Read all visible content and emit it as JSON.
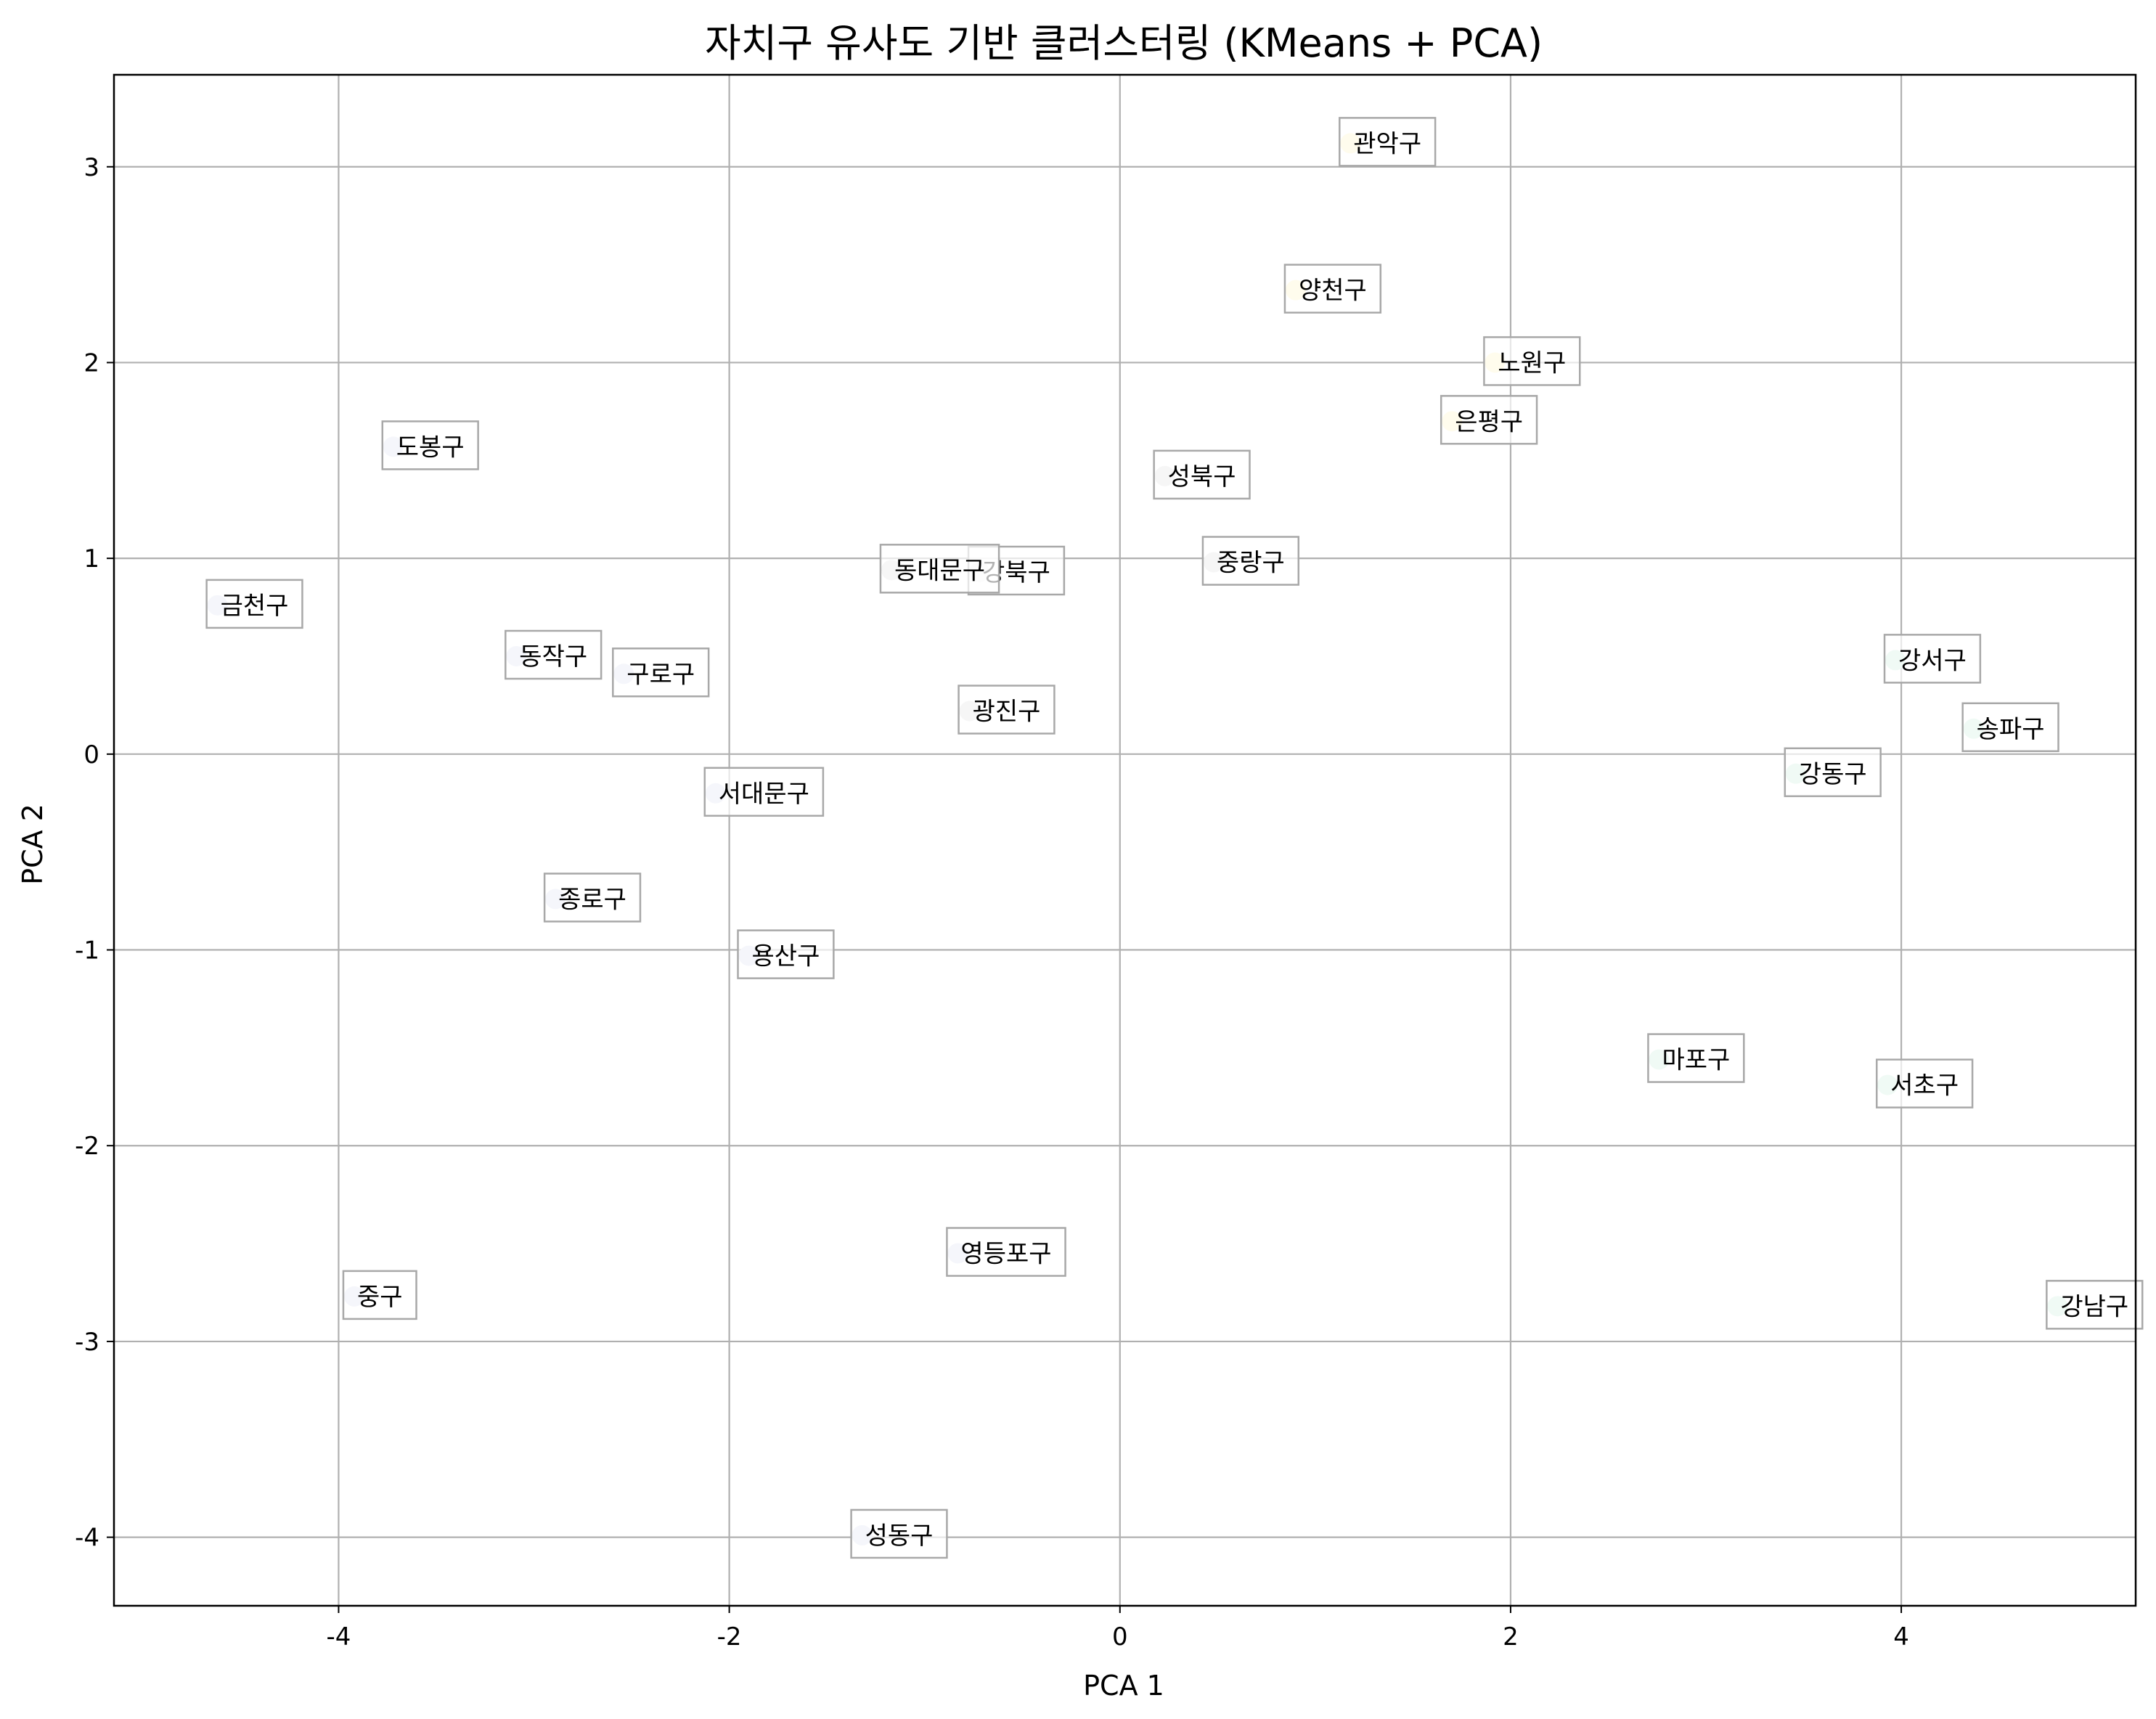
{
  "chart_data": {
    "type": "scatter",
    "title": "자치구 유사도 기반 클러스터링 (KMeans + PCA)",
    "xlabel": "PCA 1",
    "ylabel": "PCA 2",
    "xlim": [
      -5.15,
      5.2
    ],
    "ylim": [
      -4.35,
      3.47
    ],
    "xticks": [
      -4,
      -2,
      0,
      2,
      4
    ],
    "yticks": [
      -4,
      -3,
      -2,
      -1,
      0,
      1,
      2,
      3
    ],
    "xtick_labels": [
      "-4",
      "-2",
      "0",
      "2",
      "4"
    ],
    "ytick_labels": [
      "-4",
      "-3",
      "-2",
      "-1",
      "0",
      "1",
      "2",
      "3"
    ],
    "grid": true,
    "cluster_colors": {
      "a": "#dde2f0",
      "b": "#e0e0e0",
      "c": "#fff3c4",
      "d": "#cdeede"
    },
    "points": [
      {
        "name": "관악구",
        "x": 1.18,
        "y": 3.12,
        "cluster": "c"
      },
      {
        "name": "양천구",
        "x": 0.9,
        "y": 2.37,
        "cluster": "c"
      },
      {
        "name": "노원구",
        "x": 1.92,
        "y": 2.0,
        "cluster": "c"
      },
      {
        "name": "은평구",
        "x": 1.7,
        "y": 1.7,
        "cluster": "c"
      },
      {
        "name": "도봉구",
        "x": -3.72,
        "y": 1.57,
        "cluster": "a"
      },
      {
        "name": "성북구",
        "x": 0.23,
        "y": 1.42,
        "cluster": "b"
      },
      {
        "name": "강북구",
        "x": -0.72,
        "y": 0.93,
        "cluster": "b"
      },
      {
        "name": "동대문구",
        "x": -1.17,
        "y": 0.94,
        "cluster": "b"
      },
      {
        "name": "중랑구",
        "x": 0.48,
        "y": 0.98,
        "cluster": "b"
      },
      {
        "name": "금천구",
        "x": -4.62,
        "y": 0.76,
        "cluster": "a"
      },
      {
        "name": "동작구",
        "x": -3.09,
        "y": 0.5,
        "cluster": "a"
      },
      {
        "name": "구로구",
        "x": -2.54,
        "y": 0.41,
        "cluster": "a"
      },
      {
        "name": "광진구",
        "x": -0.77,
        "y": 0.22,
        "cluster": "b"
      },
      {
        "name": "강서구",
        "x": 3.97,
        "y": 0.48,
        "cluster": "d"
      },
      {
        "name": "송파구",
        "x": 4.37,
        "y": 0.13,
        "cluster": "d"
      },
      {
        "name": "강동구",
        "x": 3.46,
        "y": -0.1,
        "cluster": "d"
      },
      {
        "name": "서대문구",
        "x": -2.07,
        "y": -0.2,
        "cluster": "a"
      },
      {
        "name": "종로구",
        "x": -2.89,
        "y": -0.74,
        "cluster": "a"
      },
      {
        "name": "용산구",
        "x": -1.9,
        "y": -1.03,
        "cluster": "a"
      },
      {
        "name": "마포구",
        "x": 2.76,
        "y": -1.56,
        "cluster": "d"
      },
      {
        "name": "서초구",
        "x": 3.93,
        "y": -1.69,
        "cluster": "d"
      },
      {
        "name": "영등포구",
        "x": -0.83,
        "y": -2.55,
        "cluster": "a"
      },
      {
        "name": "중구",
        "x": -3.92,
        "y": -2.77,
        "cluster": "a"
      },
      {
        "name": "강남구",
        "x": 4.8,
        "y": -2.82,
        "cluster": "d"
      },
      {
        "name": "성동구",
        "x": -1.32,
        "y": -3.99,
        "cluster": "a"
      }
    ]
  }
}
